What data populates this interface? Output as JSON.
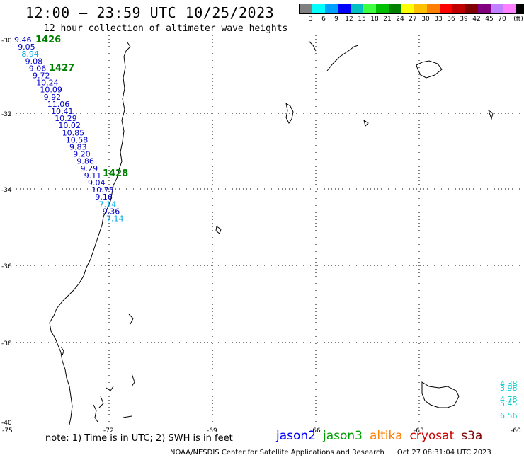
{
  "header": {
    "title": "12:00 – 23:59 UTC 10/25/2023",
    "subtitle": "12 hour collection of altimeter wave heights"
  },
  "legend": {
    "unit": "(ft)",
    "colors": [
      "#808080",
      "#00ffff",
      "#00a0ff",
      "#0000ff",
      "#00c0c0",
      "#40ff40",
      "#00c000",
      "#008000",
      "#ffff00",
      "#ffc000",
      "#ff8000",
      "#ff0000",
      "#c00000",
      "#800000",
      "#800080",
      "#c080ff",
      "#ff80ff",
      "#000000"
    ],
    "labels": [
      "3",
      "6",
      "9",
      "12",
      "15",
      "18",
      "21",
      "24",
      "27",
      "30",
      "33",
      "36",
      "39",
      "42",
      "45",
      "70"
    ]
  },
  "map": {
    "lat_labels": [
      "-30",
      "-32",
      "-34",
      "-36",
      "-38",
      "-40"
    ],
    "lon_labels": [
      "-75",
      "-72",
      "-69",
      "-66",
      "-63",
      "-60"
    ],
    "pass_labels": [
      "1426",
      "1427",
      "1428"
    ],
    "track_a": {
      "colors": {
        "jason2": "#0000cc",
        "light": "#00aaee"
      },
      "values": [
        "9.46",
        "9.05",
        "8.94",
        "9.08",
        "9.06",
        "9.72",
        "10.24",
        "10.09",
        "9.92",
        "11.06",
        "10.41",
        "10.29",
        "10.02",
        "10.85",
        "10.58",
        "9.83",
        "9.20",
        "9.86",
        "9.29",
        "9.11",
        "9.04",
        "10.75",
        "9.16",
        "7.14",
        "9.36",
        "7.14"
      ]
    },
    "track_b": {
      "values": [
        "4.38",
        "3.98",
        "4.78",
        "5.45",
        "6.56"
      ]
    }
  },
  "footer": {
    "note": "note:  1) Time is in UTC;  2) SWH is in feet",
    "missions": [
      {
        "name": "jason2",
        "color": "#0000ff"
      },
      {
        "name": "jason3",
        "color": "#00a000"
      },
      {
        "name": "altika",
        "color": "#ff8000"
      },
      {
        "name": "cryosat",
        "color": "#cc0000"
      },
      {
        "name": "s3a",
        "color": "#800000"
      }
    ],
    "credit": "NOAA/NESDIS Center for Satellite Applications and Research",
    "timestamp": "Oct 27 08:31:04 UTC 2023"
  }
}
